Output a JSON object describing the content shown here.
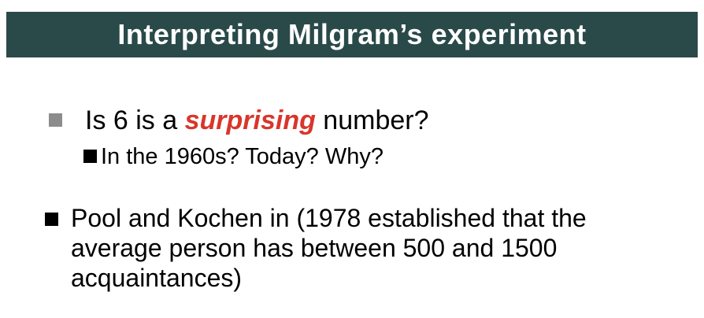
{
  "slide": {
    "title": "Interpreting Milgram’s experiment",
    "title_bar_color": "#2a4a4a",
    "bullet1": {
      "marker_icon": "gray-square-bullet-icon",
      "before": "Is 6 is a ",
      "emphasis": "surprising",
      "emphasis_color": "#d9362b",
      "after": " number?"
    },
    "bullet1_sub": {
      "marker_icon": "black-square-bullet-icon",
      "text": "In the 1960s? Today? Why?"
    },
    "bullet2": {
      "marker_icon": "black-square-bullet-icon",
      "text": "Pool and Kochen in (1978 established that the average person has between 500 and 1500 acquaintances)"
    }
  }
}
